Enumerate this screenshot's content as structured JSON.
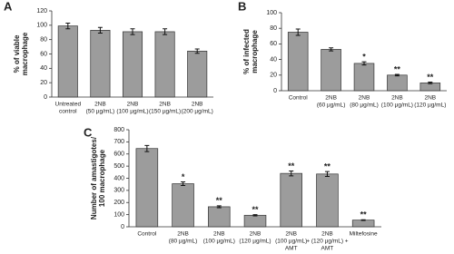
{
  "chart_data": [
    {
      "type": "bar",
      "panel": "A",
      "ylabel": [
        "% of viable",
        "macrophage"
      ],
      "categories": [
        [
          "Untreated",
          "control"
        ],
        [
          "2NB",
          "(50 µg/mL)"
        ],
        [
          "2NB",
          "(100 µg/mL)"
        ],
        [
          "2NB",
          "(150 µg/mL)"
        ],
        [
          "2NB",
          "(200 µg/mL)"
        ]
      ],
      "values": [
        99,
        93,
        91,
        91,
        64
      ],
      "errors": [
        4,
        4,
        4,
        4,
        3
      ],
      "significance": [
        null,
        null,
        null,
        null,
        null
      ],
      "color": "#9c9c9c",
      "ylim": [
        0,
        120
      ],
      "yticks": [
        0,
        20,
        40,
        60,
        80,
        100,
        120
      ]
    },
    {
      "type": "bar",
      "panel": "B",
      "ylabel": [
        "% of infected",
        "macrophage"
      ],
      "categories": [
        [
          "Control"
        ],
        [
          "2NB",
          "(60 µg/mL)"
        ],
        [
          "2NB",
          "(80 µg/mL)"
        ],
        [
          "2NB",
          "(100 µg/mL)"
        ],
        [
          "2NB",
          "(120 µg/mL)"
        ]
      ],
      "values": [
        75,
        53,
        35,
        20,
        10
      ],
      "errors": [
        4,
        2,
        2,
        1,
        1
      ],
      "significance": [
        null,
        null,
        "*",
        "**",
        "**"
      ],
      "color": "#9c9c9c",
      "ylim": [
        0,
        100
      ],
      "yticks": [
        0,
        20,
        40,
        60,
        80,
        100
      ]
    },
    {
      "type": "bar",
      "panel": "C",
      "ylabel": [
        "Number of amastigotes/",
        "100 macrophage"
      ],
      "categories": [
        [
          "Control"
        ],
        [
          "2NB",
          "(80 µg/mL)"
        ],
        [
          "2NB",
          "(100 µg/mL)"
        ],
        [
          "2NB",
          "(120 µg/mL)"
        ],
        [
          "2NB",
          "(100 µg/mL)",
          "AMT"
        ],
        [
          "2NB",
          "+ (120 µg/mL) +",
          "AMT"
        ],
        [
          "Miltefosine"
        ]
      ],
      "values": [
        645,
        355,
        165,
        95,
        440,
        435,
        55
      ],
      "errors": [
        25,
        15,
        8,
        5,
        20,
        20,
        3
      ],
      "significance": [
        null,
        "*",
        "**",
        "**",
        "**",
        "**",
        "**"
      ],
      "color": "#9c9c9c",
      "ylim": [
        0,
        800
      ],
      "yticks": [
        0,
        100,
        200,
        300,
        400,
        500,
        600,
        700,
        800
      ]
    }
  ]
}
